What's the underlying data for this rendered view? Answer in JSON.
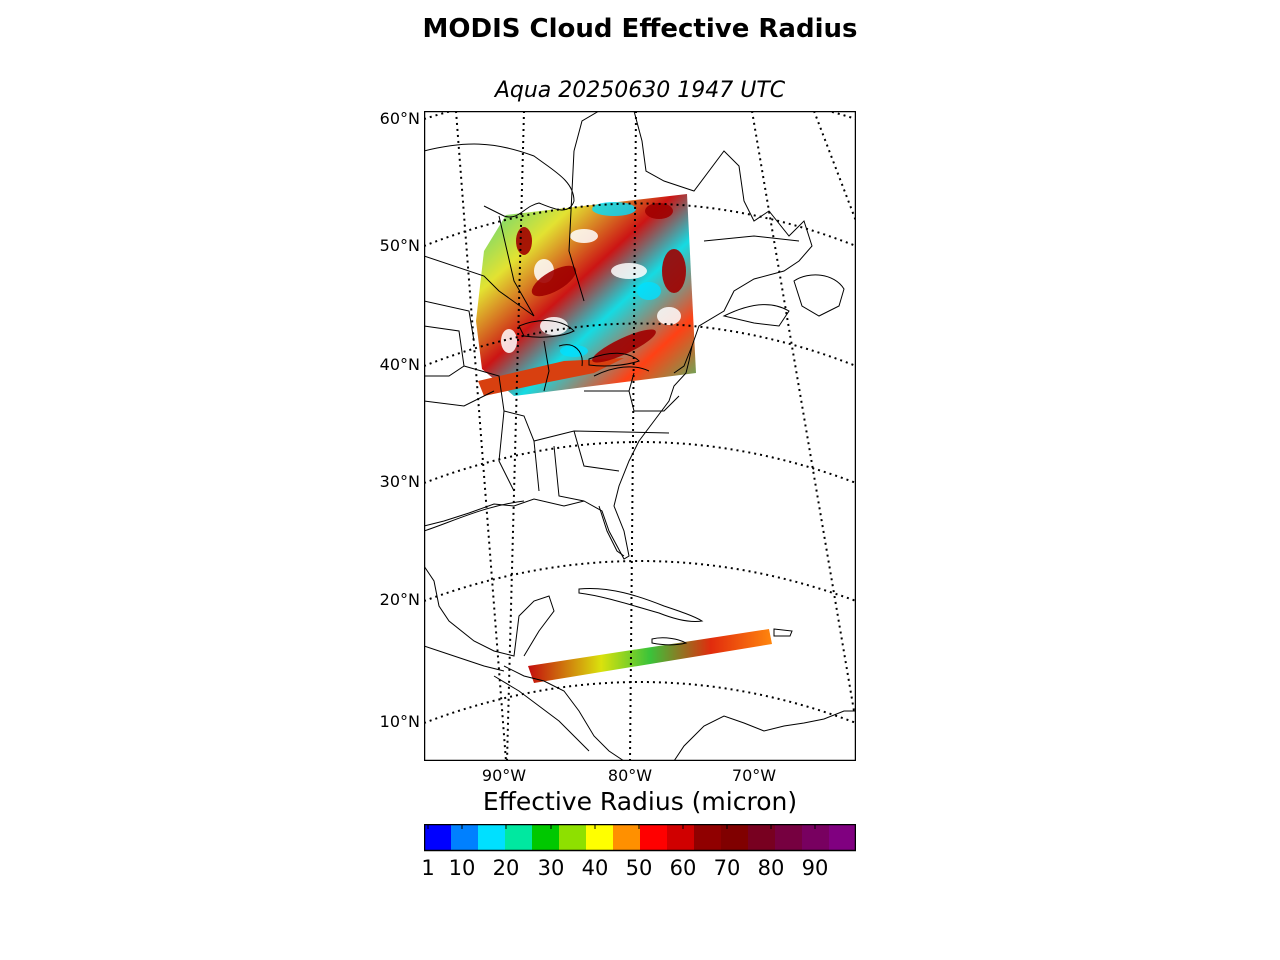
{
  "title": "MODIS Cloud Effective Radius",
  "subtitle": "Aqua 20250630 1947 UTC",
  "map": {
    "projection": "conic",
    "lat_labels": [
      "60°N",
      "50°N",
      "40°N",
      "30°N",
      "20°N",
      "10°N"
    ],
    "lon_labels": [
      "90°W",
      "80°W",
      "70°W"
    ],
    "graticule": "dotted",
    "swaths": [
      "northern swath over Great Lakes / eastern Canada",
      "southern swath over Caribbean Sea"
    ]
  },
  "colorbar": {
    "label": "Effective Radius (micron)",
    "ticks": [
      "1",
      "10",
      "20",
      "30",
      "40",
      "50",
      "60",
      "70",
      "80",
      "90"
    ],
    "colors": [
      "#0000ff",
      "#0080ff",
      "#00e0ff",
      "#00e8a0",
      "#00c800",
      "#8ee000",
      "#ffff00",
      "#ff9000",
      "#ff0000",
      "#d00000",
      "#900000",
      "#800000",
      "#780020",
      "#760040",
      "#780060",
      "#800080"
    ]
  }
}
